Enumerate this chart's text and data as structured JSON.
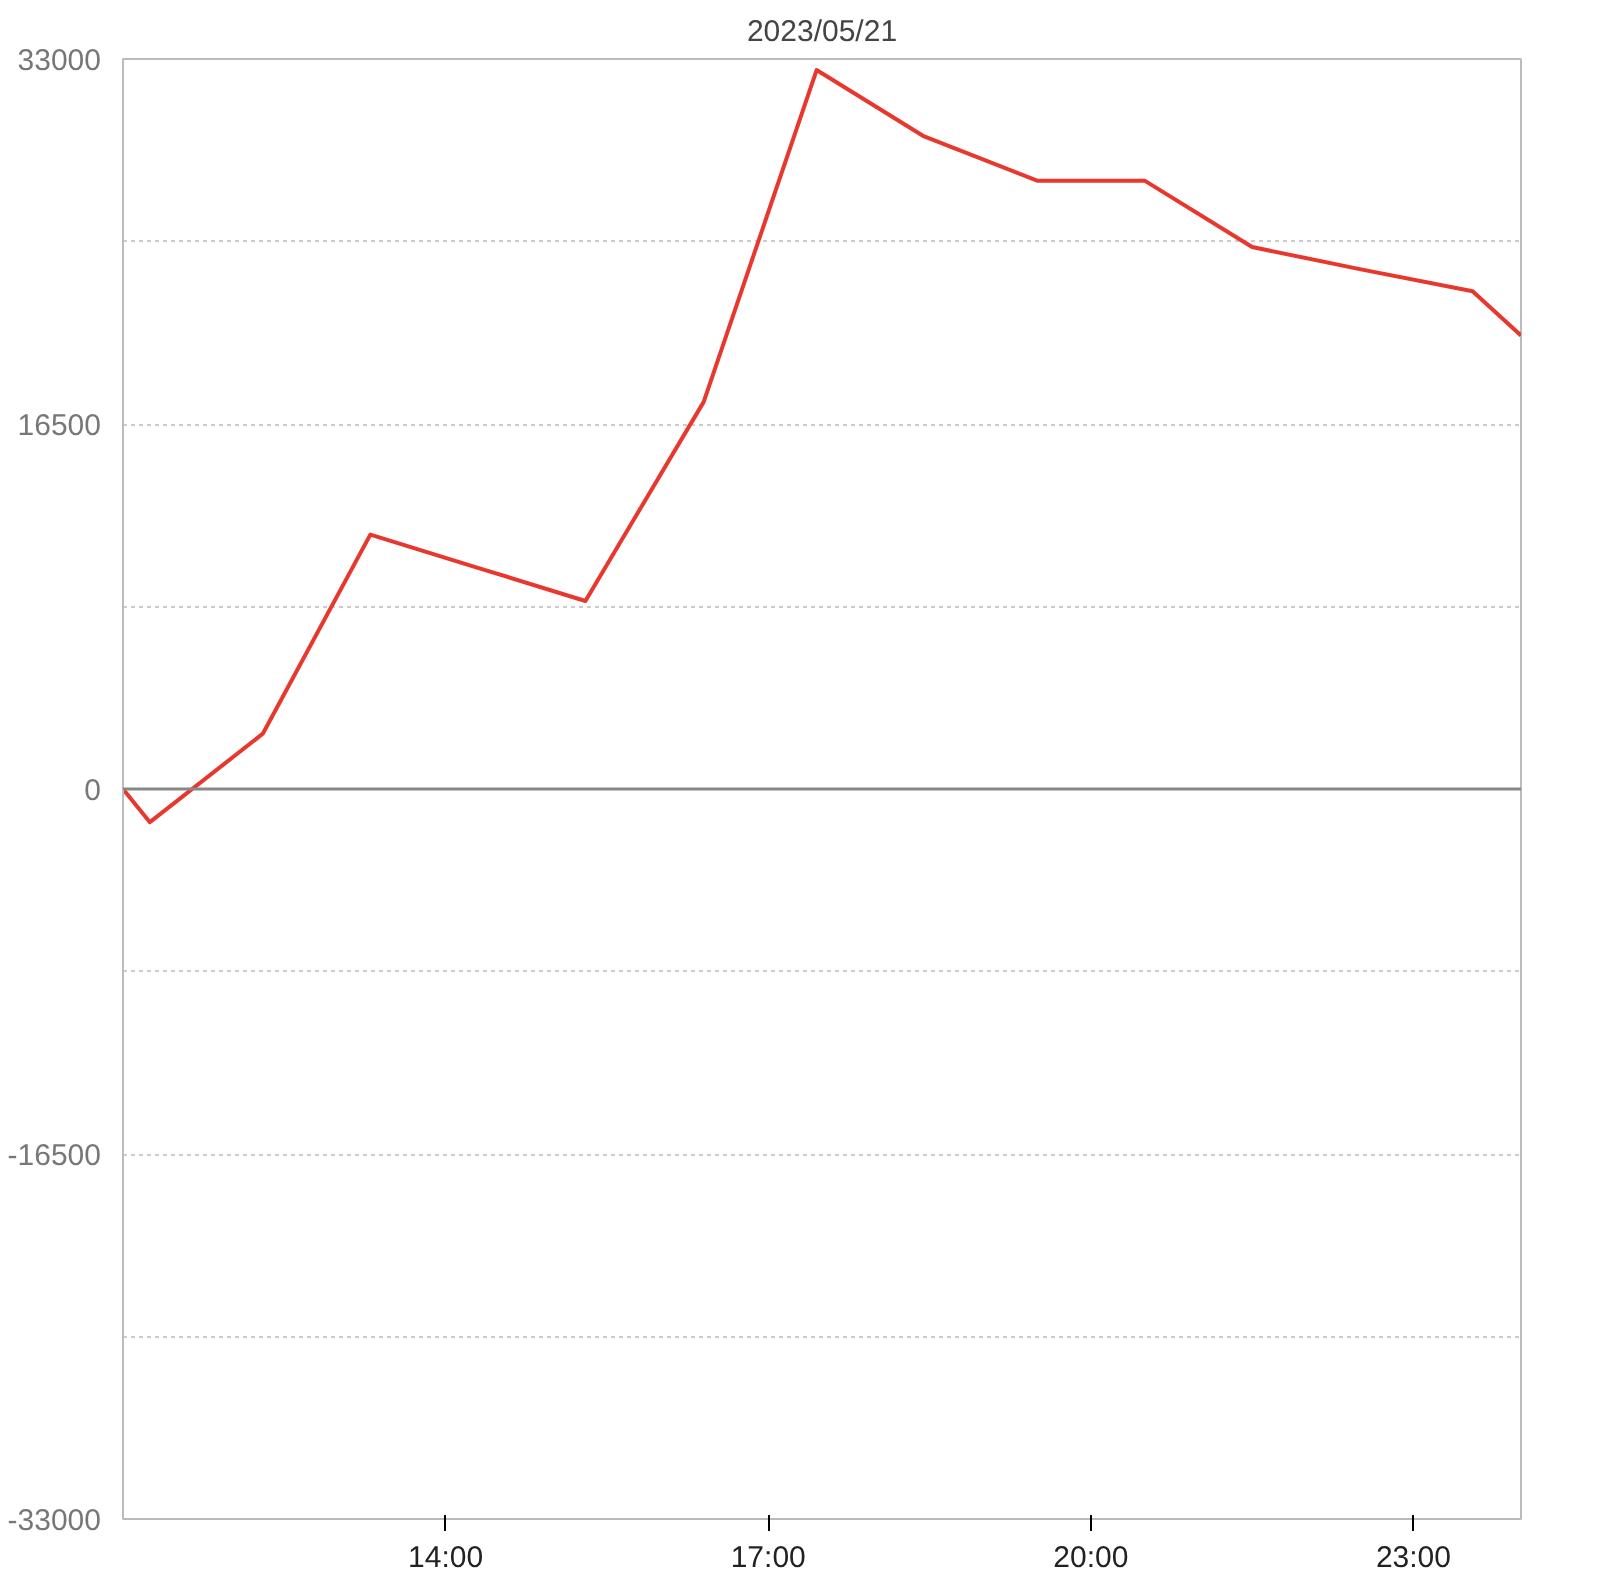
{
  "chart_data": {
    "type": "line",
    "title": "2023/05/21",
    "x": [
      11.0,
      11.25,
      12.3,
      13.3,
      14.3,
      15.3,
      16.4,
      17.45,
      18.45,
      19.5,
      20.5,
      21.5,
      22.5,
      23.55,
      24.0
    ],
    "series": [
      {
        "color": "#e8372c",
        "values": [
          0,
          -1500,
          2500,
          11500,
          10000,
          8500,
          17500,
          32500,
          29500,
          27500,
          27500,
          24500,
          23500,
          22500,
          20500
        ]
      }
    ],
    "xlim": [
      11,
      24
    ],
    "ylim": [
      -33000,
      33000
    ],
    "xticks": [
      {
        "value": 14,
        "label": "14:00"
      },
      {
        "value": 17,
        "label": "17:00"
      },
      {
        "value": 20,
        "label": "20:00"
      },
      {
        "value": 23,
        "label": "23:00"
      }
    ],
    "yticks": [
      -33000,
      {
        "value": -24750,
        "label": null
      },
      -16500,
      {
        "value": -8250,
        "label": null
      },
      0,
      {
        "value": 8250,
        "label": null
      },
      16500,
      {
        "value": 24750,
        "label": null
      },
      33000
    ],
    "ref_lines": [
      {
        "axis": "y",
        "value": 0,
        "color": "#888888"
      }
    ],
    "grid": "y",
    "marker": "none",
    "line_style": "solid"
  }
}
